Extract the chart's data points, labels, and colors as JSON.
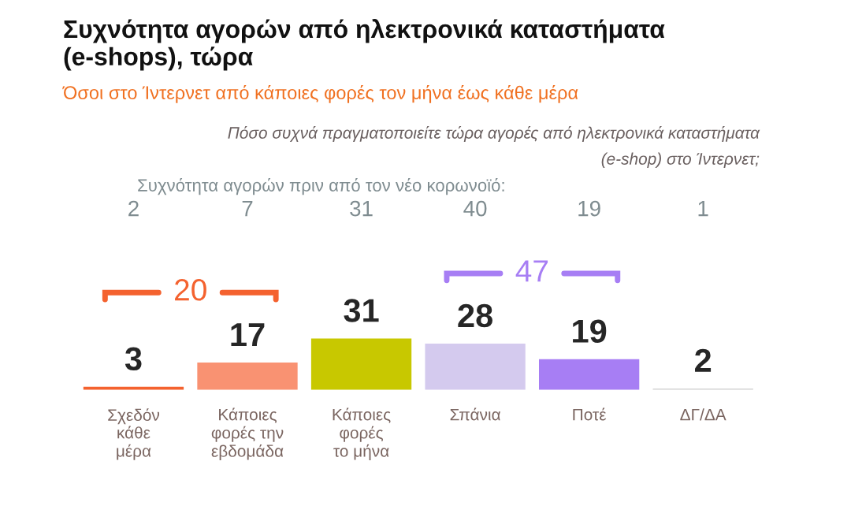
{
  "chart_data": {
    "type": "bar",
    "title": "Συχνότητα αγορών από ηλεκτρονικά καταστήματα\n(e-shops), τώρα",
    "subtitle": "Όσοι στο Ίντερνετ από κάποιες φορές τον μήνα έως κάθε μέρα",
    "categories": [
      "Σχεδόν\nκάθε\nμέρα",
      "Κάποιες\nφορές την\nεβδομάδα",
      "Κάποιες\nφορές\nτο μήνα",
      "Σπάνια",
      "Ποτέ",
      "ΔΓ/ΔΑ"
    ],
    "values": [
      3,
      17,
      31,
      28,
      19,
      2
    ],
    "colors": [
      "#f4622f",
      "#f99272",
      "#c8c800",
      "#d4caee",
      "#a77ef4",
      "#d3d3d3"
    ],
    "data_labels": true,
    "annotations": [
      "Πόσο συχνά πραγματοποιείτε τώρα αγορές από ηλεκτρονικά καταστήματα\n(e-shop) στο Ίντερνετ;",
      "Συχνότητα αγορών πριν από τον νέο κορωνοϊό:",
      "2",
      "7",
      "31",
      "40",
      "19",
      "1",
      "20",
      "47"
    ]
  }
}
